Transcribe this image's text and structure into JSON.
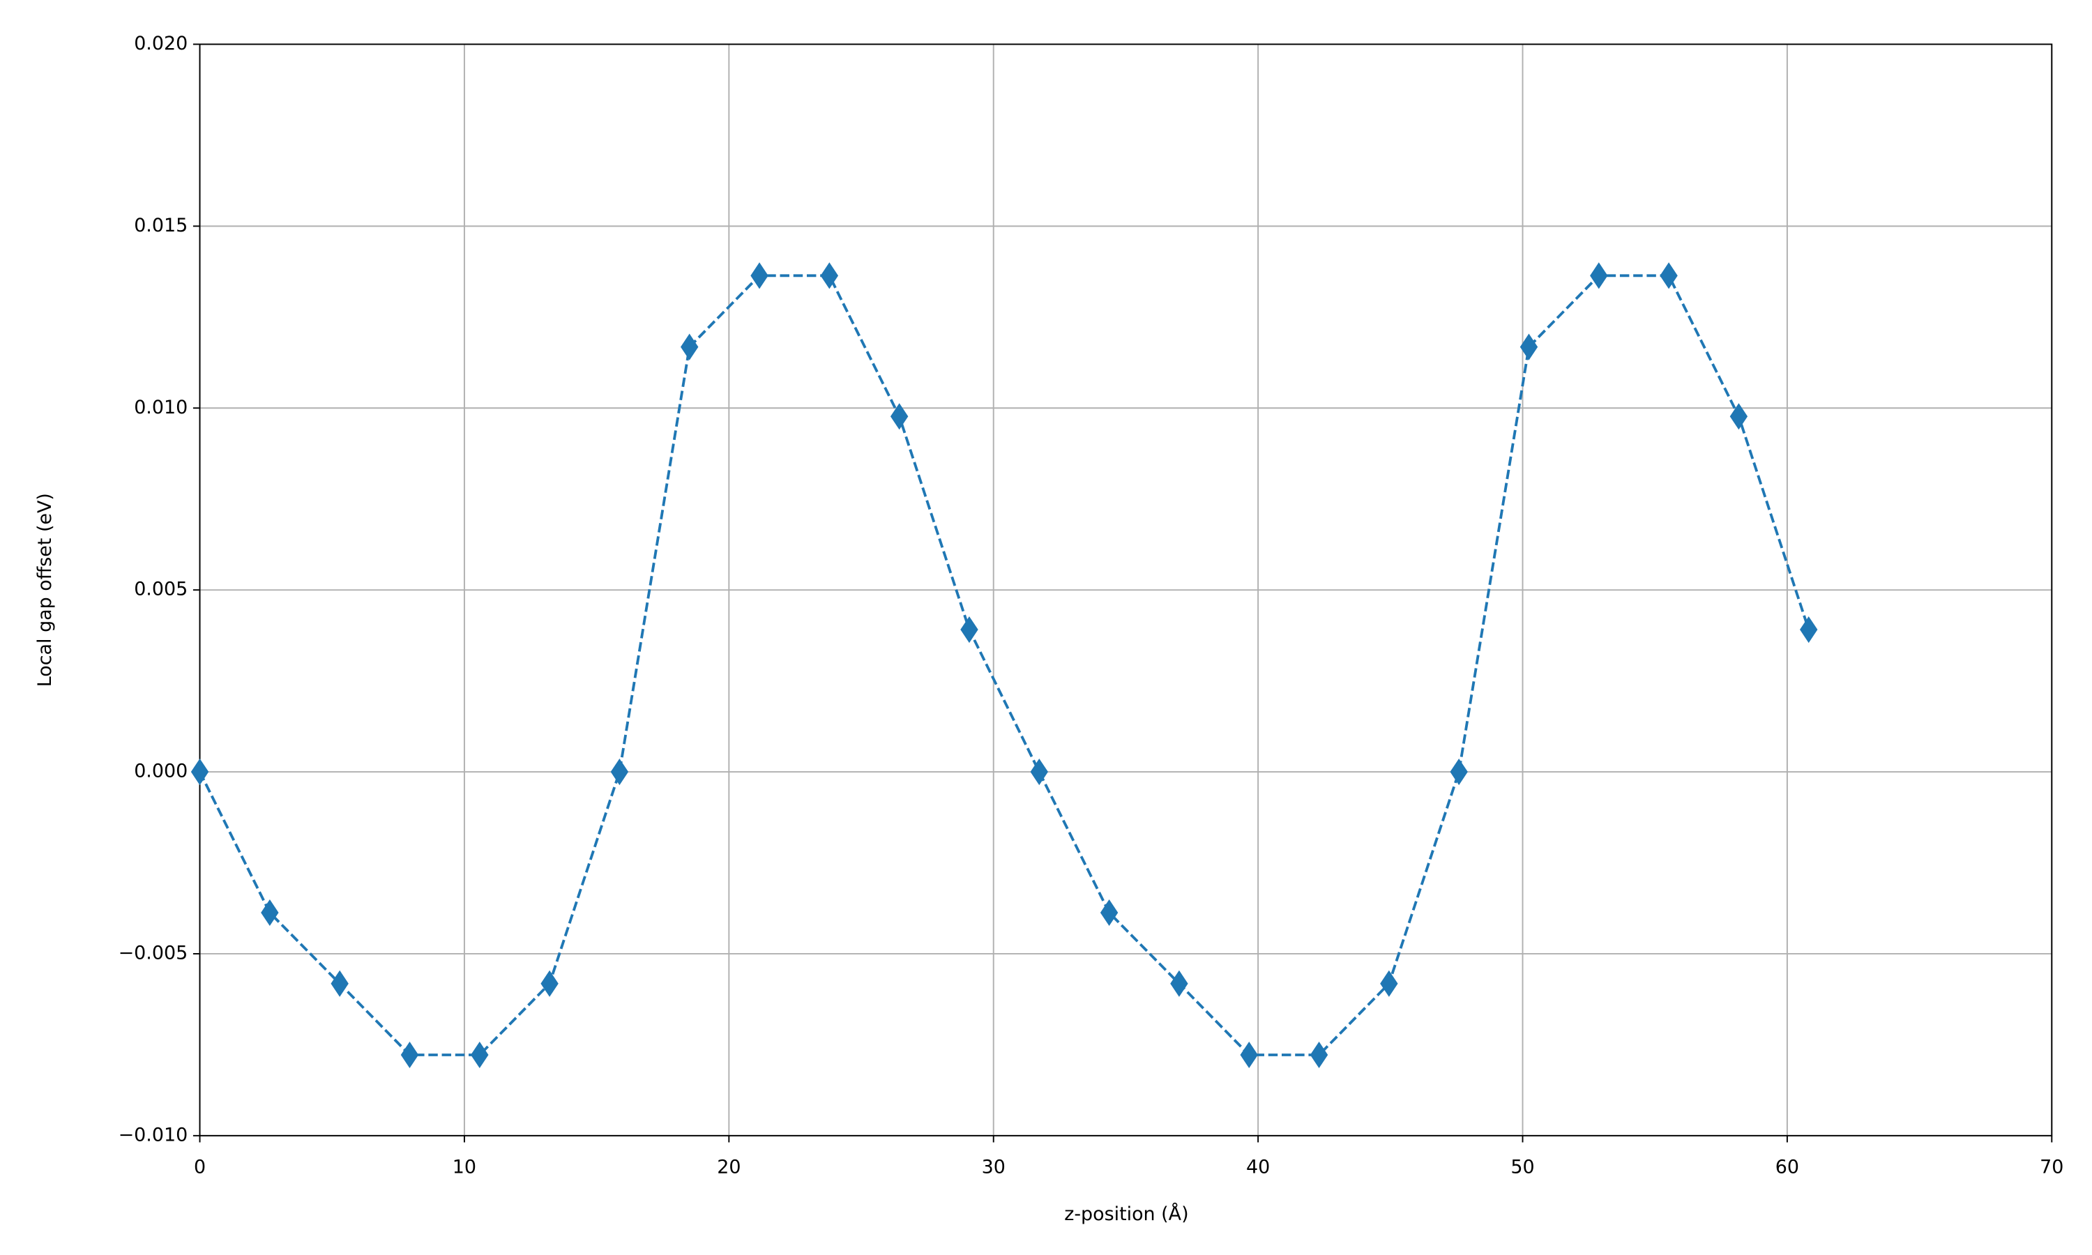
{
  "chart_data": {
    "type": "line",
    "x_label": "z-position (Å)",
    "y_label": "Local gap offset (eV)",
    "x": [
      0,
      2.644,
      5.288,
      7.932,
      10.576,
      13.22,
      15.864,
      18.508,
      21.152,
      23.796,
      26.44,
      29.084,
      31.728,
      34.372,
      37.016,
      39.66,
      42.304,
      44.948,
      47.592,
      50.236,
      52.88,
      55.524,
      58.168,
      60.812
    ],
    "values": [
      0,
      -0.00387,
      -0.00582,
      -0.00778,
      -0.00778,
      -0.00582,
      0,
      0.01168,
      0.01364,
      0.01364,
      0.00977,
      0.00391,
      0,
      -0.00387,
      -0.00582,
      -0.00778,
      -0.00778,
      -0.00582,
      0,
      0.01168,
      0.01364,
      0.01364,
      0.00977,
      0.00391
    ],
    "color": "#1f77b4",
    "line_style": "dashed",
    "marker": "thin-diamond",
    "xlim": [
      0,
      70
    ],
    "xticks": [
      0,
      10,
      20,
      30,
      40,
      50,
      60,
      70
    ],
    "ylim": [
      -0.01,
      0.02
    ],
    "yticks": [
      {
        "value": -0.01,
        "label": "−0.010"
      },
      {
        "value": -0.005,
        "label": "−0.005"
      },
      {
        "value": 0,
        "label": "0.000"
      },
      {
        "value": 0.005,
        "label": "0.005"
      },
      {
        "value": 0.01,
        "label": "0.010"
      },
      {
        "value": 0.015,
        "label": "0.015"
      },
      {
        "value": 0.02,
        "label": "0.020"
      }
    ],
    "grid": true
  }
}
